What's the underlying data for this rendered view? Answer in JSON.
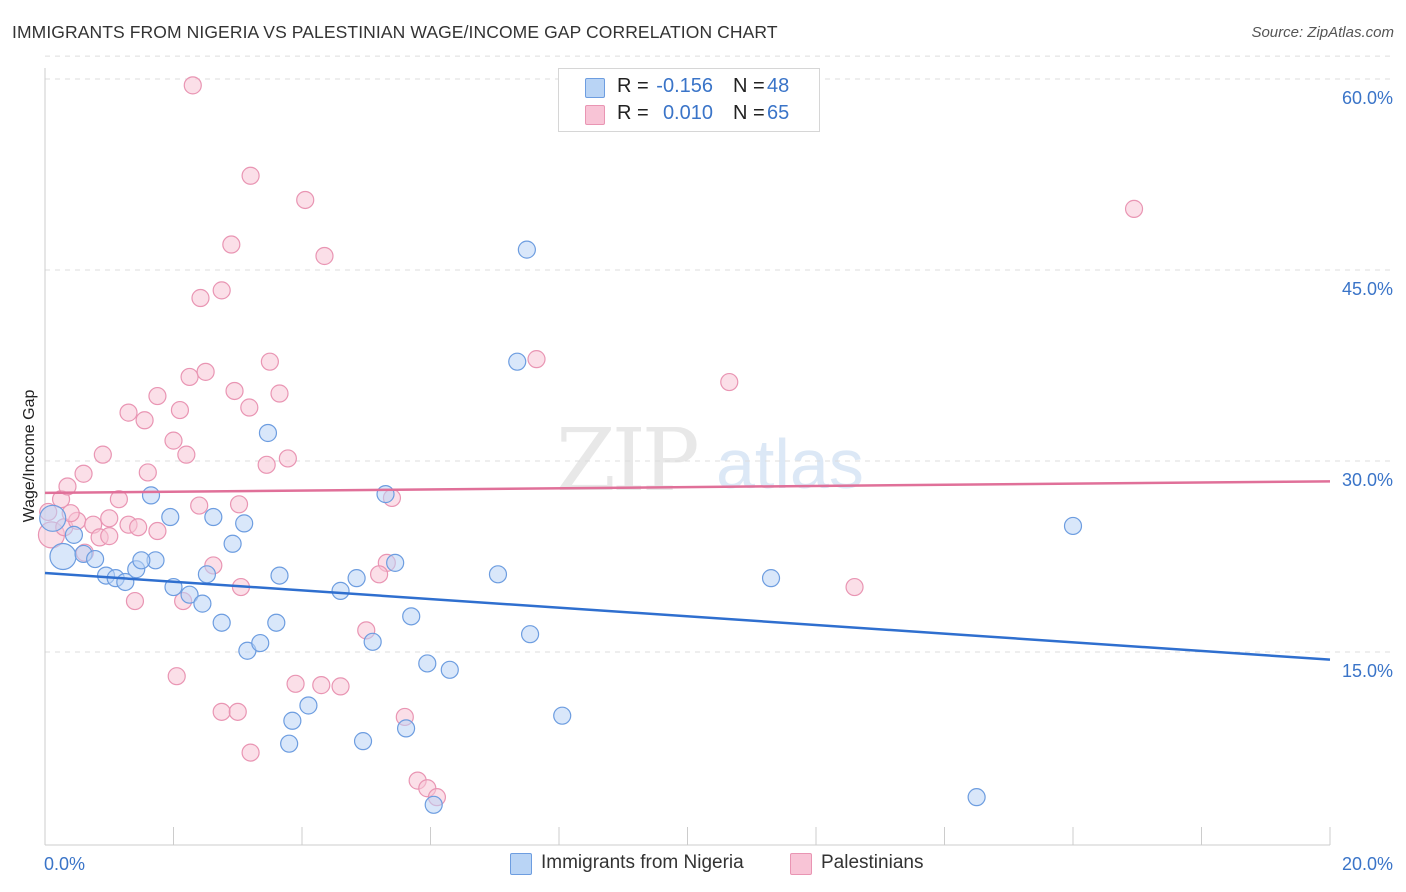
{
  "header": {
    "title": "IMMIGRANTS FROM NIGERIA VS PALESTINIAN WAGE/INCOME GAP CORRELATION CHART",
    "source": "Source: ZipAtlas.com"
  },
  "colors": {
    "blue_fill": "#b9d4f5",
    "blue_stroke": "#6d9de0",
    "blue_line": "#2f6fcf",
    "pink_fill": "#f8c4d6",
    "pink_stroke": "#e995b3",
    "pink_line": "#e07099",
    "grid": "#dddddd",
    "axis_text": "#3a74c8"
  },
  "legend_top": [
    {
      "r_label": "R =",
      "r_value": "-0.156",
      "n_label": "N =",
      "n_value": "48"
    },
    {
      "r_label": "R =",
      "r_value": "0.010",
      "n_label": "N =",
      "n_value": "65"
    }
  ],
  "legend_bottom": [
    {
      "label": "Immigrants from Nigeria"
    },
    {
      "label": "Palestinians"
    }
  ],
  "watermark": {
    "zip": "ZIP",
    "atlas": "atlas"
  },
  "chart_data": {
    "type": "scatter",
    "title": "IMMIGRANTS FROM NIGERIA VS PALESTINIAN WAGE/INCOME GAP CORRELATION CHART",
    "xlabel": "",
    "ylabel": "Wage/Income Gap",
    "xlim": [
      0,
      20
    ],
    "ylim": [
      0,
      60
    ],
    "x_tick_labels": [
      "0.0%",
      "20.0%"
    ],
    "y_ticks": [
      15,
      30,
      45,
      60
    ],
    "y_tick_labels": [
      "15.0%",
      "30.0%",
      "45.0%",
      "60.0%"
    ],
    "grid": true,
    "legend_position": "top-center",
    "series": [
      {
        "name": "Immigrants from Nigeria",
        "r": -0.156,
        "n": 48,
        "trend": {
          "x": [
            0,
            20
          ],
          "y": [
            21.2,
            14.4
          ]
        },
        "points": [
          [
            0.12,
            25.5,
            "large"
          ],
          [
            0.28,
            22.5,
            "large"
          ],
          [
            0.45,
            24.2
          ],
          [
            0.6,
            22.7
          ],
          [
            0.78,
            22.3
          ],
          [
            0.95,
            21.0
          ],
          [
            1.1,
            20.8
          ],
          [
            1.25,
            20.5
          ],
          [
            1.72,
            22.2
          ],
          [
            1.42,
            21.5
          ],
          [
            1.5,
            22.2
          ],
          [
            2.25,
            19.5
          ],
          [
            2.52,
            21.1
          ],
          [
            2.0,
            20.1
          ],
          [
            2.45,
            18.8
          ],
          [
            1.65,
            27.3
          ],
          [
            1.95,
            25.6
          ],
          [
            2.62,
            25.6
          ],
          [
            3.1,
            25.1
          ],
          [
            2.92,
            23.5
          ],
          [
            3.47,
            32.2
          ],
          [
            3.15,
            15.1
          ],
          [
            3.35,
            15.7
          ],
          [
            2.75,
            17.3
          ],
          [
            3.6,
            17.3
          ],
          [
            3.65,
            21.0
          ],
          [
            3.85,
            9.6
          ],
          [
            4.1,
            10.8
          ],
          [
            3.8,
            7.8
          ],
          [
            4.6,
            19.8
          ],
          [
            4.85,
            20.8
          ],
          [
            5.3,
            27.4
          ],
          [
            5.1,
            15.8
          ],
          [
            5.45,
            22.0
          ],
          [
            5.7,
            17.8
          ],
          [
            5.95,
            14.1
          ],
          [
            6.3,
            13.6
          ],
          [
            4.95,
            8.0
          ],
          [
            5.62,
            9.0
          ],
          [
            6.05,
            3.0
          ],
          [
            7.05,
            21.1
          ],
          [
            7.5,
            46.6
          ],
          [
            7.35,
            37.8
          ],
          [
            7.55,
            16.4
          ],
          [
            8.05,
            10.0
          ],
          [
            11.3,
            20.8
          ],
          [
            16.0,
            24.9
          ],
          [
            14.5,
            3.6
          ]
        ]
      },
      {
        "name": "Palestinians",
        "r": 0.01,
        "n": 65,
        "trend": {
          "x": [
            0,
            20
          ],
          "y": [
            27.5,
            28.4
          ]
        },
        "points": [
          [
            0.1,
            24.2,
            "large"
          ],
          [
            0.05,
            26.0
          ],
          [
            0.25,
            27.0
          ],
          [
            0.35,
            28.0
          ],
          [
            0.6,
            29.0
          ],
          [
            0.3,
            24.8
          ],
          [
            0.5,
            25.3
          ],
          [
            0.75,
            25.0
          ],
          [
            0.85,
            24.0
          ],
          [
            1.0,
            25.5
          ],
          [
            1.15,
            27.0
          ],
          [
            1.3,
            25.0
          ],
          [
            1.45,
            24.8
          ],
          [
            0.9,
            30.5
          ],
          [
            1.6,
            29.1
          ],
          [
            1.55,
            33.2
          ],
          [
            1.3,
            33.8
          ],
          [
            1.75,
            35.1
          ],
          [
            2.1,
            34.0
          ],
          [
            2.25,
            36.6
          ],
          [
            2.5,
            37.0
          ],
          [
            2.0,
            31.6
          ],
          [
            2.2,
            30.5
          ],
          [
            2.4,
            26.5
          ],
          [
            2.62,
            21.8
          ],
          [
            2.42,
            42.8
          ],
          [
            2.75,
            43.4
          ],
          [
            2.9,
            47.0
          ],
          [
            2.95,
            35.5
          ],
          [
            3.18,
            34.2
          ],
          [
            3.45,
            29.7
          ],
          [
            3.02,
            26.6
          ],
          [
            3.05,
            20.1
          ],
          [
            3.2,
            52.4
          ],
          [
            3.5,
            37.8
          ],
          [
            3.65,
            35.3
          ],
          [
            3.78,
            30.2
          ],
          [
            4.05,
            50.5
          ],
          [
            4.35,
            46.1
          ],
          [
            3.9,
            12.5
          ],
          [
            4.3,
            12.4
          ],
          [
            4.6,
            12.3
          ],
          [
            5.0,
            16.7
          ],
          [
            5.32,
            22.0
          ],
          [
            5.2,
            21.1
          ],
          [
            5.4,
            27.1
          ],
          [
            5.6,
            9.9
          ],
          [
            5.8,
            4.9
          ],
          [
            5.95,
            4.3
          ],
          [
            6.1,
            3.6
          ],
          [
            2.3,
            59.5
          ],
          [
            2.05,
            13.1
          ],
          [
            2.15,
            19.0
          ],
          [
            2.75,
            10.3
          ],
          [
            3.0,
            10.3
          ],
          [
            3.2,
            7.1
          ],
          [
            7.65,
            38.0
          ],
          [
            1.4,
            19.0
          ],
          [
            1.0,
            24.1
          ],
          [
            0.4,
            25.9
          ],
          [
            10.65,
            36.2
          ],
          [
            12.6,
            20.1
          ],
          [
            16.95,
            49.8
          ],
          [
            1.75,
            24.5
          ],
          [
            0.62,
            22.8
          ]
        ]
      }
    ]
  }
}
